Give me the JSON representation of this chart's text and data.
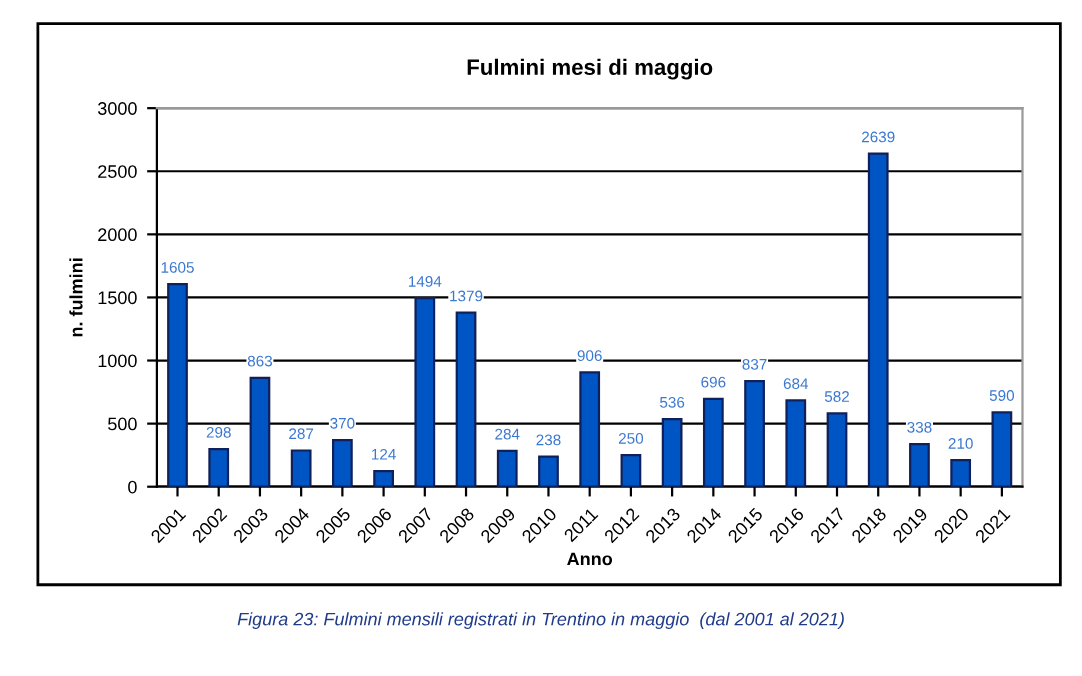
{
  "chart_data": {
    "type": "bar",
    "title": "Fulmini mesi di maggio",
    "xlabel": "Anno",
    "ylabel": "n. fulmini",
    "categories": [
      "2001",
      "2002",
      "2003",
      "2004",
      "2005",
      "2006",
      "2007",
      "2008",
      "2009",
      "2010",
      "2011",
      "2012",
      "2013",
      "2014",
      "2015",
      "2016",
      "2017",
      "2018",
      "2019",
      "2020",
      "2021"
    ],
    "values": [
      1605,
      298,
      863,
      287,
      370,
      124,
      1494,
      1379,
      284,
      238,
      906,
      250,
      536,
      696,
      837,
      684,
      582,
      2639,
      338,
      210,
      590
    ],
    "color": "#0055c4",
    "ylim": [
      0,
      3000
    ],
    "yticks": [
      0,
      500,
      1000,
      1500,
      2000,
      2500,
      3000
    ],
    "grid": "y",
    "data_labels": true,
    "annotations": [
      "Figura 23: Fulmini mensili registrati in Trentino in maggio  (dal 2001 al 2021)"
    ]
  }
}
